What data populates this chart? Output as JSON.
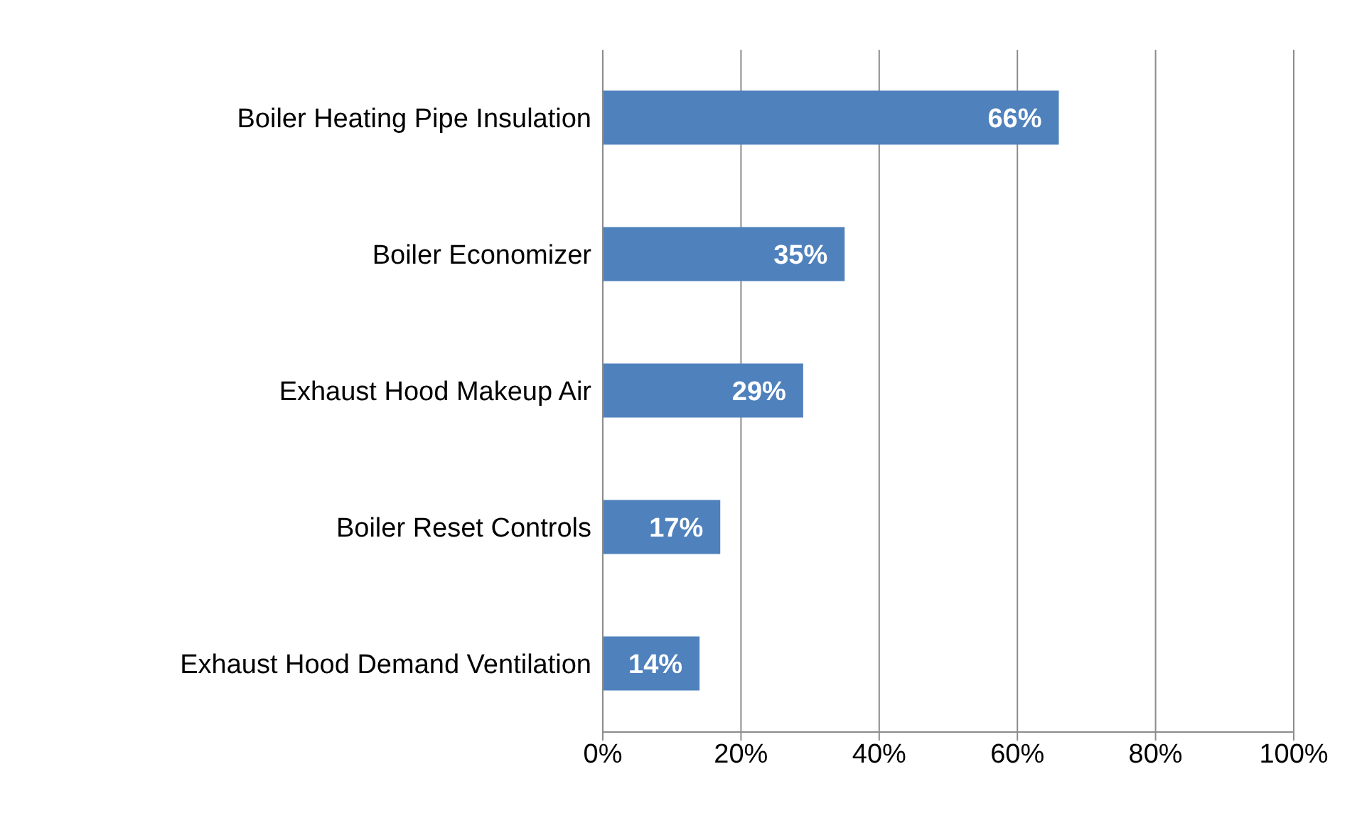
{
  "chart_data": {
    "type": "bar",
    "orientation": "horizontal",
    "categories": [
      "Boiler Heating Pipe Insulation",
      "Boiler Economizer",
      "Exhaust Hood Makeup Air",
      "Boiler Reset Controls",
      "Exhaust Hood Demand Ventilation"
    ],
    "values": [
      66,
      35,
      29,
      17,
      14
    ],
    "value_labels": [
      "66%",
      "35%",
      "29%",
      "17%",
      "14%"
    ],
    "color": "#4f81bd",
    "xlim": [
      0,
      100
    ],
    "xticks": [
      {
        "value": 0,
        "label": "0%"
      },
      {
        "value": 20,
        "label": "20%"
      },
      {
        "value": 40,
        "label": "40%"
      },
      {
        "value": 60,
        "label": "60%"
      },
      {
        "value": 80,
        "label": "80%"
      },
      {
        "value": 100,
        "label": "100%"
      }
    ],
    "grid": "x",
    "legend": false
  }
}
